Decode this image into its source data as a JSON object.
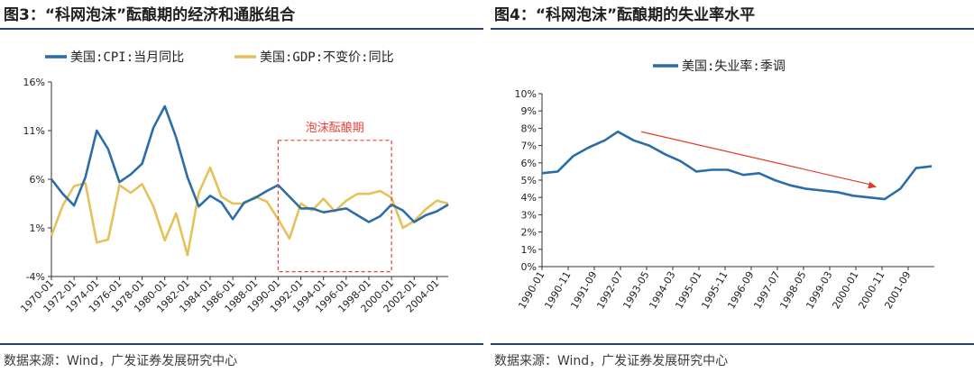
{
  "figures": [
    {
      "title": "图3：“科网泡沫”酝酿期的经济和通胀组合",
      "source": "数据来源：Wind，广发证券发展研究中心",
      "annotation": "泡沫酝酿期",
      "chart_data": {
        "type": "line",
        "title": "",
        "xlabel": "",
        "ylabel": "",
        "ylim": [
          -4,
          16
        ],
        "yticks": [
          "16%",
          "11%",
          "6%",
          "1%",
          "-4%"
        ],
        "x_tick_labels": [
          "1970-01",
          "1972-01",
          "1974-01",
          "1976-01",
          "1978-01",
          "1980-01",
          "1982-01",
          "1984-01",
          "1986-01",
          "1988-01",
          "1990-01",
          "1992-01",
          "1994-01",
          "1996-01",
          "1998-01",
          "2000-01",
          "2002-01",
          "2004-01"
        ],
        "x": [
          1970,
          1971,
          1972,
          1973,
          1974,
          1975,
          1976,
          1977,
          1978,
          1979,
          1980,
          1981,
          1982,
          1983,
          1984,
          1985,
          1986,
          1987,
          1988,
          1989,
          1990,
          1991,
          1992,
          1993,
          1994,
          1995,
          1996,
          1997,
          1998,
          1999,
          2000,
          2001,
          2002,
          2003,
          2004,
          2005
        ],
        "legend_position": "top",
        "grid": false,
        "series": [
          {
            "name": "美国:CPI:当月同比",
            "color": "#2b6da8",
            "values": [
              6.0,
              4.5,
              3.3,
              6.2,
              11.0,
              9.1,
              5.7,
              6.5,
              7.6,
              11.3,
              13.5,
              10.3,
              6.2,
              3.2,
              4.3,
              3.6,
              1.9,
              3.6,
              4.1,
              4.8,
              5.4,
              4.2,
              3.0,
              3.0,
              2.6,
              2.8,
              3.0,
              2.3,
              1.6,
              2.2,
              3.4,
              2.8,
              1.6,
              2.3,
              2.7,
              3.4
            ]
          },
          {
            "name": "美国:GDP:不变价:同比",
            "color": "#e6c15a",
            "values": [
              0.2,
              3.3,
              5.3,
              5.6,
              -0.5,
              -0.2,
              5.4,
              4.6,
              5.5,
              3.2,
              -0.3,
              2.5,
              -1.8,
              4.6,
              7.2,
              4.2,
              3.5,
              3.5,
              4.2,
              3.7,
              1.9,
              -0.1,
              3.5,
              2.8,
              4.0,
              2.7,
              3.8,
              4.5,
              4.5,
              4.8,
              4.1,
              1.0,
              1.7,
              2.9,
              3.8,
              3.5
            ]
          }
        ]
      }
    },
    {
      "title": "图4：“科网泡沫”酝酿期的失业率水平",
      "source": "数据来源：Wind，广发证券发展研究中心",
      "chart_data": {
        "type": "line",
        "title": "",
        "xlabel": "",
        "ylabel": "",
        "ylim": [
          0,
          10
        ],
        "yticks": [
          "10%",
          "9%",
          "8%",
          "7%",
          "6%",
          "5%",
          "4%",
          "3%",
          "2%",
          "1%",
          "0%"
        ],
        "x_tick_labels": [
          "1990-01",
          "1990-11",
          "1991-09",
          "1992-07",
          "1993-05",
          "1994-03",
          "1995-01",
          "1995-11",
          "1996-09",
          "1997-07",
          "1998-05",
          "1999-03",
          "2000-01",
          "2000-11",
          "2001-09"
        ],
        "x": [
          "1990-01",
          "1990-07",
          "1991-01",
          "1991-07",
          "1992-01",
          "1992-06",
          "1992-12",
          "1993-06",
          "1993-12",
          "1994-06",
          "1994-12",
          "1995-06",
          "1995-12",
          "1996-06",
          "1996-12",
          "1997-06",
          "1997-12",
          "1998-06",
          "1998-12",
          "1999-06",
          "1999-12",
          "2000-06",
          "2000-12",
          "2001-06",
          "2001-12",
          "2002-06"
        ],
        "legend_position": "top",
        "grid": false,
        "series": [
          {
            "name": "美国:失业率:季调",
            "color": "#2b6da8",
            "values": [
              5.4,
              5.5,
              6.4,
              6.9,
              7.3,
              7.8,
              7.3,
              7.0,
              6.5,
              6.1,
              5.5,
              5.6,
              5.6,
              5.3,
              5.4,
              5.0,
              4.7,
              4.5,
              4.4,
              4.3,
              4.1,
              4.0,
              3.9,
              4.5,
              5.7,
              5.8
            ]
          }
        ],
        "trend_arrow": {
          "from": [
            "1993-03",
            7.8
          ],
          "to": [
            "2000-09",
            4.6
          ],
          "color": "#e23a2a"
        }
      }
    }
  ]
}
